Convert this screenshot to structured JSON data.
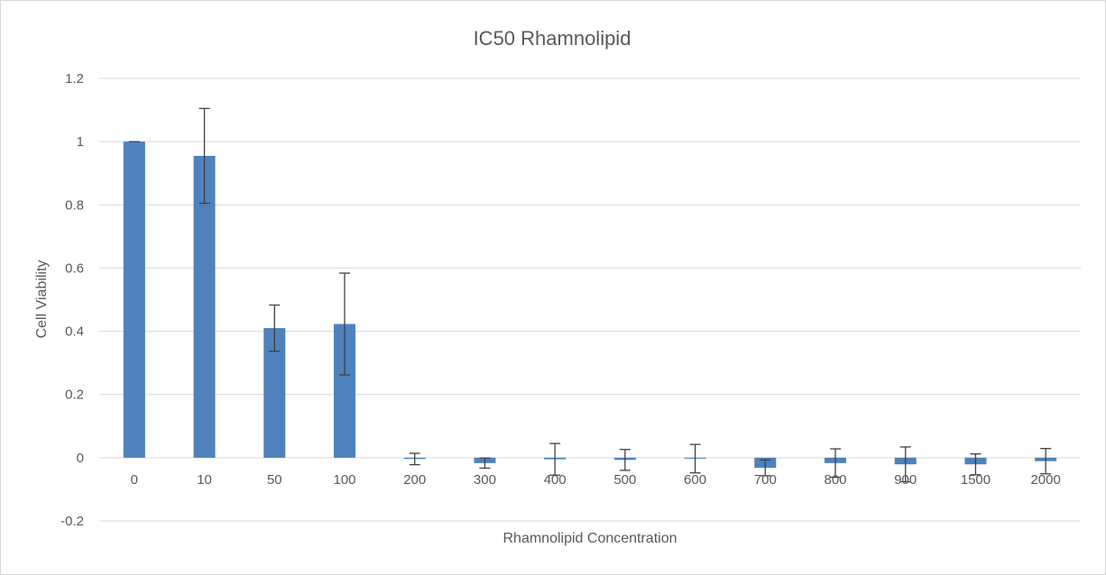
{
  "chart_data": {
    "type": "bar",
    "title": "IC50 Rhamnolipid",
    "xlabel": "Rhamnolipid Concentration",
    "ylabel": "Cell Viability",
    "categories": [
      "0",
      "10",
      "50",
      "100",
      "200",
      "300",
      "400",
      "500",
      "600",
      "700",
      "800",
      "900",
      "1500",
      "2000"
    ],
    "values": [
      1.0,
      0.955,
      0.41,
      0.423,
      -0.004,
      -0.017,
      -0.005,
      -0.007,
      -0.003,
      -0.032,
      -0.017,
      -0.021,
      -0.021,
      -0.011
    ],
    "error": [
      0.0,
      0.15,
      0.073,
      0.161,
      0.018,
      0.016,
      0.05,
      0.033,
      0.045,
      0.025,
      0.045,
      0.055,
      0.033,
      0.04
    ],
    "yticks": [
      "1.2",
      "1",
      "0.8",
      "0.6",
      "0.4",
      "0.2",
      "0",
      "-0.2"
    ],
    "ylim": [
      -0.2,
      1.2
    ],
    "grid": true,
    "bar_color": "#4f81bd",
    "error_color": "#404040",
    "grid_color": "#d9d9d9"
  }
}
